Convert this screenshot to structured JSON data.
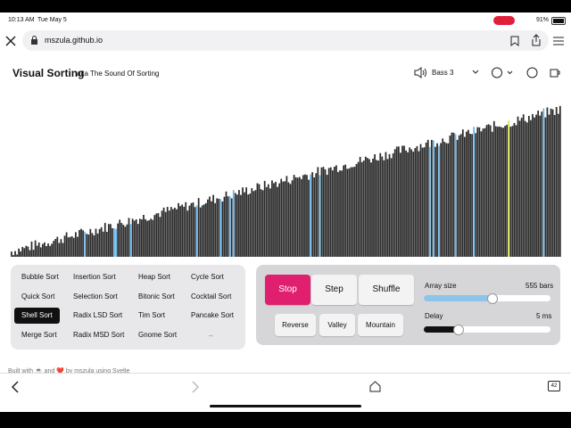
{
  "status": {
    "time": "10:13 AM",
    "date": "Tue May 5",
    "battery": "91%"
  },
  "browser": {
    "url": "mszula.github.io",
    "tabs": "42"
  },
  "header": {
    "title": "Visual Sorting",
    "subtitle": "aka The Sound Of Sorting",
    "sound": "Bass 3"
  },
  "algorithms": [
    "Bubble Sort",
    "Insertion Sort",
    "Heap Sort",
    "Cycle Sort",
    "Quick Sort",
    "Selection Sort",
    "Bitonic Sort",
    "Cocktail Sort",
    "Shell Sort",
    "Radix LSD Sort",
    "Tim Sort",
    "Pancake Sort",
    "Merge Sort",
    "Radix MSD Sort",
    "Gnome Sort"
  ],
  "next": "→",
  "controls": {
    "buttons": [
      "Stop",
      "Step",
      "Shuffle"
    ],
    "shapes": [
      "Reverse",
      "Valley",
      "Mountain"
    ],
    "array_size": {
      "label": "Array size",
      "value": "555 bars"
    },
    "delay": {
      "label": "Delay",
      "value": "5 ms"
    }
  },
  "footer": "Built with ☕ and ❤️ by mszula using Svelte"
}
